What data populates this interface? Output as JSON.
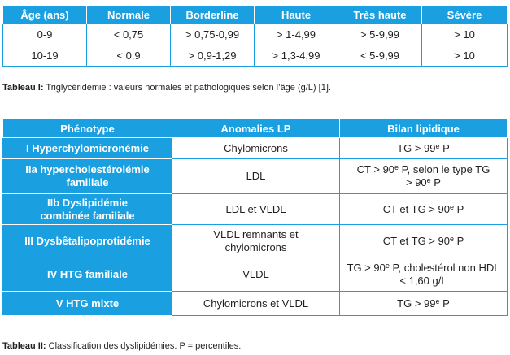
{
  "table1": {
    "headers": [
      "Âge (ans)",
      "Normale",
      "Borderline",
      "Haute",
      "Très haute",
      "Sévère"
    ],
    "rows": [
      [
        "0-9",
        "< 0,75",
        "> 0,75-0,99",
        "> 1-4,99",
        "> 5-9,99",
        "> 10"
      ],
      [
        "10-19",
        "< 0,9",
        "> 0,9-1,29",
        "> 1,3-4,99",
        "< 5-9,99",
        "> 10"
      ]
    ],
    "caption_label": "Tableau I:",
    "caption_text": " Triglycéridémie : valeurs normales et pathologiques selon l’âge (g/L) [1]."
  },
  "table2": {
    "headers": [
      "Phénotype",
      "Anomalies LP",
      "Bilan lipidique"
    ],
    "rows": [
      {
        "phenotype": "I Hyperchylomicronémie",
        "lp": "Chylomicrons",
        "bilan_pre": "TG > 99",
        "bilan_sup": "e",
        "bilan_post": " P"
      },
      {
        "phenotype": "IIa hypercholestérolémie familiale",
        "lp": "LDL",
        "bilan_pre": "CT > 90",
        "bilan_sup": "e",
        "bilan_post": " P, selon le type TG > 90",
        "bilan_sup2": "e",
        "bilan_post2": " P"
      },
      {
        "phenotype": "IIb Dyslipidémie combinée familiale",
        "lp": "LDL et VLDL",
        "bilan_pre": "CT et TG > 90",
        "bilan_sup": "e",
        "bilan_post": " P"
      },
      {
        "phenotype": "III Dysbêtalipoprotidémie",
        "lp": "VLDL remnants et chylomicrons",
        "bilan_pre": "CT et TG > 90",
        "bilan_sup": "e",
        "bilan_post": " P"
      },
      {
        "phenotype": "IV HTG familiale",
        "lp": "VLDL",
        "bilan_pre": "TG > 90",
        "bilan_sup": "e",
        "bilan_post": " P, cholestérol non HDL < 1,60 g/L"
      },
      {
        "phenotype": "V HTG mixte",
        "lp": "Chylomicrons et VLDL",
        "bilan_pre": "TG > 99",
        "bilan_sup": "e",
        "bilan_post": " P"
      }
    ],
    "caption_label": "Tableau II:",
    "caption_text": " Classification des dyslipidémies. P = percentiles."
  }
}
